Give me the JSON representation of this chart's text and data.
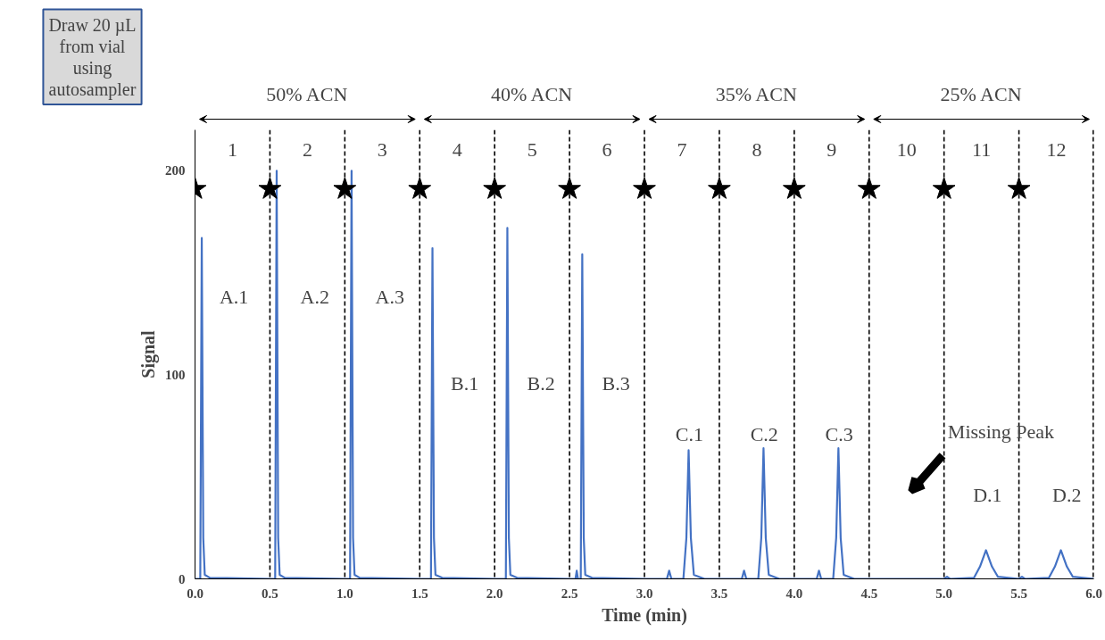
{
  "chart_data": {
    "type": "line",
    "xlabel": "Time (min)",
    "ylabel": "Signal",
    "xlim": [
      0,
      6
    ],
    "ylim": [
      0,
      220
    ],
    "xticks": [
      {
        "value": 0,
        "label": "0.0"
      },
      {
        "value": 0.5,
        "label": "0.5"
      },
      {
        "value": 1,
        "label": "1.0"
      },
      {
        "value": 1.5,
        "label": "1.5"
      },
      {
        "value": 2,
        "label": "2.0"
      },
      {
        "value": 2.5,
        "label": "2.5"
      },
      {
        "value": 3,
        "label": "3.0"
      },
      {
        "value": 3.5,
        "label": "3.5"
      },
      {
        "value": 4,
        "label": "4.0"
      },
      {
        "value": 4.5,
        "label": "4.5"
      },
      {
        "value": 5,
        "label": "5.0"
      },
      {
        "value": 5.5,
        "label": "5.5"
      },
      {
        "value": 6,
        "label": "6.0"
      }
    ],
    "yticks": [
      0,
      100,
      200
    ],
    "grid": false,
    "series": [
      {
        "color": "#4472c4",
        "marker": "none",
        "line_style": "solid",
        "x": [
          0.0,
          0.035,
          0.045,
          0.055,
          0.065,
          0.1,
          0.5,
          0.535,
          0.545,
          0.555,
          0.565,
          0.6,
          1.0,
          1.035,
          1.045,
          1.055,
          1.065,
          1.1,
          1.5,
          1.575,
          1.585,
          1.595,
          1.605,
          1.65,
          2.0,
          2.075,
          2.085,
          2.095,
          2.105,
          2.15,
          2.5,
          2.54,
          2.548,
          2.556,
          2.575,
          2.585,
          2.595,
          2.605,
          2.65,
          3.0,
          3.15,
          3.165,
          3.18,
          3.26,
          3.28,
          3.295,
          3.31,
          3.33,
          3.4,
          3.65,
          3.665,
          3.68,
          3.76,
          3.78,
          3.795,
          3.81,
          3.83,
          3.9,
          4.15,
          4.165,
          4.18,
          4.26,
          4.28,
          4.295,
          4.31,
          4.33,
          4.4,
          5.0,
          5.02,
          5.04,
          5.2,
          5.24,
          5.28,
          5.32,
          5.36,
          5.5,
          5.52,
          5.54,
          5.7,
          5.74,
          5.78,
          5.82,
          5.86,
          6.0
        ],
        "values": [
          0,
          0,
          167,
          20,
          2,
          0.5,
          0,
          0,
          200,
          20,
          2,
          0.5,
          0,
          0,
          200,
          20,
          2,
          0.5,
          0,
          0,
          162,
          20,
          2,
          0.5,
          0,
          0,
          172,
          20,
          2,
          0.5,
          0,
          0,
          4,
          0,
          0,
          159,
          20,
          2,
          0.5,
          0,
          0,
          4,
          0,
          0,
          20,
          63,
          20,
          2,
          0,
          0,
          4,
          0,
          0,
          20,
          64,
          20,
          2,
          0,
          0,
          4,
          0,
          0,
          20,
          64,
          20,
          2,
          0,
          0,
          1,
          0,
          0.5,
          6,
          14,
          6,
          1,
          0,
          1,
          0,
          0.5,
          6,
          14,
          6,
          1,
          0
        ]
      },
      {
        "type": "scatter",
        "color": "#000000",
        "marker": "star",
        "x": [
          0,
          0.5,
          1,
          1.5,
          2,
          2.5,
          3,
          3.5,
          4,
          4.5,
          5,
          5.5
        ],
        "values": [
          191,
          191,
          191,
          191,
          191,
          191,
          191,
          191,
          191,
          191,
          191,
          191
        ]
      }
    ],
    "ref_lines": [
      {
        "axis": "x",
        "value": 0.5,
        "color": "#000000",
        "line_style": "dashed"
      },
      {
        "axis": "x",
        "value": 1.0,
        "color": "#000000",
        "line_style": "dashed"
      },
      {
        "axis": "x",
        "value": 1.5,
        "color": "#000000",
        "line_style": "dashed"
      },
      {
        "axis": "x",
        "value": 2.0,
        "color": "#000000",
        "line_style": "dashed"
      },
      {
        "axis": "x",
        "value": 2.5,
        "color": "#000000",
        "line_style": "dashed"
      },
      {
        "axis": "x",
        "value": 3.0,
        "color": "#000000",
        "line_style": "dashed"
      },
      {
        "axis": "x",
        "value": 3.5,
        "color": "#000000",
        "line_style": "dashed"
      },
      {
        "axis": "x",
        "value": 4.0,
        "color": "#000000",
        "line_style": "dashed"
      },
      {
        "axis": "x",
        "value": 4.5,
        "color": "#000000",
        "line_style": "dashed"
      },
      {
        "axis": "x",
        "value": 5.0,
        "color": "#000000",
        "line_style": "dashed"
      },
      {
        "axis": "x",
        "value": 5.5,
        "color": "#000000",
        "line_style": "dashed"
      },
      {
        "axis": "x",
        "value": 6.0,
        "color": "#000000",
        "line_style": "dashed"
      }
    ],
    "annotations": [
      "Draw 20 µL\nfrom vial\nusing\nautosampler",
      "50% ACN",
      "40% ACN",
      "35% ACN",
      "25% ACN",
      "1",
      "2",
      "3",
      "4",
      "5",
      "6",
      "7",
      "8",
      "9",
      "10",
      "11",
      "12",
      "A.1",
      "A.2",
      "A.3",
      "B.1",
      "B.2",
      "B.3",
      "C.1",
      "C.2",
      "C.3",
      "D.1",
      "D.2",
      "Missing Peak"
    ]
  }
}
